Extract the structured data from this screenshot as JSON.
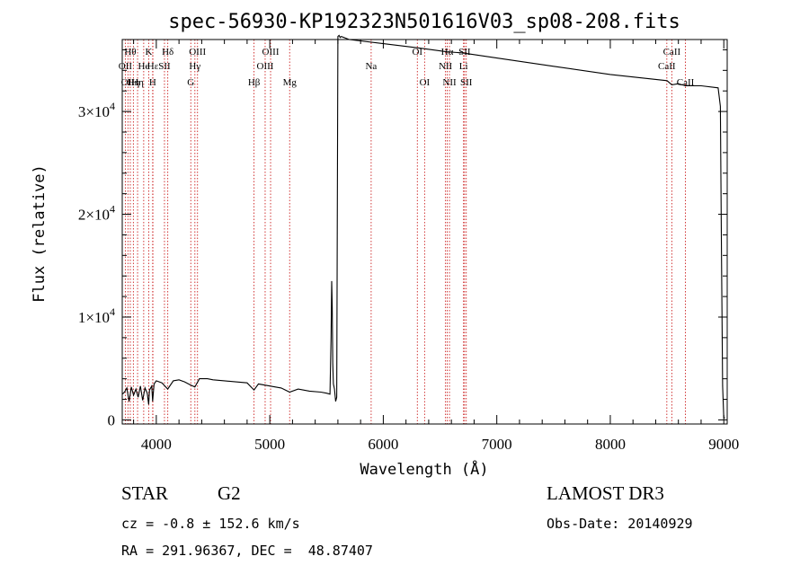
{
  "chart_data": {
    "type": "line",
    "title": "spec-56930-KP192323N501616V03_sp08-208.fits",
    "xlabel": "Wavelength (Å)",
    "ylabel": "Flux (relative)",
    "xlim": [
      3700,
      9030
    ],
    "ylim": [
      -400,
      37000
    ],
    "xticks": [
      4000,
      5000,
      6000,
      7000,
      8000,
      9000
    ],
    "yticks": [
      {
        "value": 0,
        "base": "0",
        "exp": ""
      },
      {
        "value": 10000,
        "base": "1×10",
        "exp": "4"
      },
      {
        "value": 20000,
        "base": "2×10",
        "exp": "4"
      },
      {
        "value": 30000,
        "base": "3×10",
        "exp": "4"
      }
    ],
    "series": [
      {
        "name": "flux",
        "x": [
          3700,
          3720,
          3740,
          3760,
          3780,
          3800,
          3820,
          3840,
          3860,
          3880,
          3900,
          3920,
          3933,
          3940,
          3960,
          3968,
          3980,
          4000,
          4050,
          4101,
          4150,
          4200,
          4250,
          4300,
          4340,
          4380,
          4450,
          4500,
          4600,
          4700,
          4800,
          4861,
          4900,
          5000,
          5100,
          5175,
          5250,
          5350,
          5450,
          5500,
          5530,
          5540,
          5545,
          5550,
          5555,
          5560,
          5570,
          5580,
          5590,
          5600,
          5610,
          5620,
          5630,
          5700,
          6000,
          6300,
          6563,
          6700,
          7000,
          7500,
          8000,
          8500,
          8542,
          8600,
          8662,
          8800,
          8950,
          8970,
          8980,
          8990,
          9000,
          9010
        ],
        "y": [
          2500,
          2700,
          3100,
          1800,
          3200,
          2400,
          3000,
          2200,
          3300,
          1900,
          3100,
          2600,
          1500,
          2900,
          3300,
          1800,
          3500,
          3800,
          3600,
          3000,
          3800,
          3900,
          3700,
          3400,
          3200,
          4000,
          4000,
          3900,
          3800,
          3700,
          3600,
          2900,
          3500,
          3300,
          3100,
          2700,
          3000,
          2800,
          2700,
          2600,
          2500,
          8000,
          13500,
          11000,
          5500,
          3500,
          3000,
          1800,
          2200,
          37300,
          37400,
          37200,
          37300,
          37000,
          36600,
          36200,
          35800,
          35700,
          35200,
          34400,
          33600,
          33000,
          32600,
          32700,
          32500,
          32500,
          32300,
          30500,
          15500,
          3300,
          200,
          200
        ]
      }
    ],
    "spectral_lines": [
      {
        "wl": 3727,
        "label": "OII",
        "row": 2
      },
      {
        "wl": 3750,
        "label": "OII",
        "row": 3
      },
      {
        "wl": 3771,
        "label": "Hθ",
        "row": 1
      },
      {
        "wl": 3798,
        "label": "Hη",
        "row": 3
      },
      {
        "wl": 3835,
        "label": "Hη",
        "row": 3
      },
      {
        "wl": 3889,
        "label": "He",
        "row": 2
      },
      {
        "wl": 3933,
        "label": "K",
        "row": 1
      },
      {
        "wl": 3968,
        "label": "H",
        "row": 3
      },
      {
        "wl": 3970,
        "label": "Hε",
        "row": 2
      },
      {
        "wl": 4072,
        "label": "SII",
        "row": 2
      },
      {
        "wl": 4101,
        "label": "Hδ",
        "row": 1
      },
      {
        "wl": 4304,
        "label": "G",
        "row": 3
      },
      {
        "wl": 4340,
        "label": "Hγ",
        "row": 2
      },
      {
        "wl": 4363,
        "label": "OIII",
        "row": 1
      },
      {
        "wl": 4861,
        "label": "Hβ",
        "row": 3
      },
      {
        "wl": 4959,
        "label": "OIII",
        "row": 2
      },
      {
        "wl": 5007,
        "label": "OIII",
        "row": 1
      },
      {
        "wl": 5175,
        "label": "Mg",
        "row": 3
      },
      {
        "wl": 5893,
        "label": "Na",
        "row": 2
      },
      {
        "wl": 6300,
        "label": "OI",
        "row": 1
      },
      {
        "wl": 6364,
        "label": "OI",
        "row": 3
      },
      {
        "wl": 6548,
        "label": "NII",
        "row": 2
      },
      {
        "wl": 6563,
        "label": "Hα",
        "row": 1
      },
      {
        "wl": 6583,
        "label": "NII",
        "row": 3
      },
      {
        "wl": 6707,
        "label": "Li",
        "row": 2
      },
      {
        "wl": 6716,
        "label": "SII",
        "row": 1
      },
      {
        "wl": 6731,
        "label": "SII",
        "row": 3
      },
      {
        "wl": 8498,
        "label": "CaII",
        "row": 2
      },
      {
        "wl": 8542,
        "label": "CaII",
        "row": 1
      },
      {
        "wl": 8662,
        "label": "CaII",
        "row": 3
      }
    ]
  },
  "info": {
    "object_type": "STAR",
    "subclass": "G2",
    "survey": "LAMOST DR3",
    "redshift": "cz = -0.8 ± 152.6 km/s",
    "obs_date": "Obs-Date: 20140929",
    "coords": "RA = 291.96367, DEC =  48.87407"
  },
  "colors": {
    "line_marker": "#cc2222",
    "spectrum": "#000000",
    "axis": "#000000"
  }
}
